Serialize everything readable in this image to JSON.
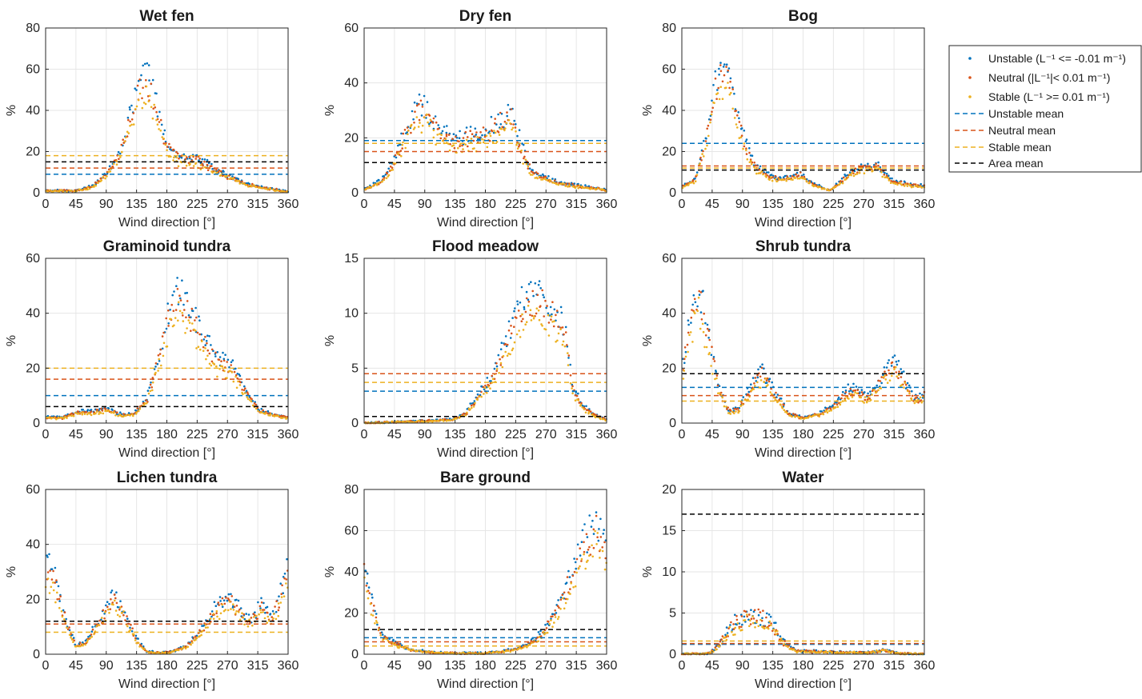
{
  "legend": {
    "entries": [
      {
        "key": "unstable",
        "label": "Unstable (L⁻¹ <= -0.01 m⁻¹)",
        "color": "#0072BD",
        "style": "dots"
      },
      {
        "key": "neutral",
        "label": "Neutral (|L⁻¹|< 0.01 m⁻¹)",
        "color": "#D95319",
        "style": "dots"
      },
      {
        "key": "stable",
        "label": "Stable (L⁻¹ >= 0.01 m⁻¹)",
        "color": "#EDB120",
        "style": "dots"
      },
      {
        "key": "unstable_mean",
        "label": "Unstable mean",
        "color": "#0072BD",
        "style": "dashed"
      },
      {
        "key": "neutral_mean",
        "label": "Neutral mean",
        "color": "#D95319",
        "style": "dashed"
      },
      {
        "key": "stable_mean",
        "label": "Stable mean",
        "color": "#EDB120",
        "style": "dashed"
      },
      {
        "key": "area_mean",
        "label": "Area mean",
        "color": "#000000",
        "style": "dashed"
      }
    ]
  },
  "chart_data": [
    {
      "type": "scatter",
      "title": "Wet fen",
      "xlabel": "Wind direction [°]",
      "ylabel": "%",
      "xlim": [
        0,
        360
      ],
      "ylim": [
        0,
        80
      ],
      "xticks": [
        0,
        45,
        90,
        135,
        180,
        225,
        270,
        315,
        360
      ],
      "yticks": [
        0,
        20,
        40,
        60,
        80
      ],
      "means": {
        "unstable": 9,
        "neutral": 12,
        "stable": 18,
        "area": 15
      },
      "profile": {
        "x": [
          0,
          45,
          70,
          90,
          110,
          125,
          135,
          150,
          165,
          180,
          200,
          225,
          245,
          270,
          300,
          330,
          360
        ],
        "y": [
          1,
          1,
          3,
          9,
          18,
          35,
          47,
          55,
          40,
          22,
          16,
          16,
          12,
          8,
          4,
          2,
          0.5
        ]
      },
      "spread": 0.12
    },
    {
      "type": "scatter",
      "title": "Dry fen",
      "xlabel": "Wind direction [°]",
      "ylabel": "%",
      "xlim": [
        0,
        360
      ],
      "ylim": [
        0,
        60
      ],
      "xticks": [
        0,
        45,
        90,
        135,
        180,
        225,
        270,
        315,
        360
      ],
      "yticks": [
        0,
        20,
        40,
        60
      ],
      "means": {
        "unstable": 19,
        "neutral": 15,
        "stable": 18,
        "area": 11
      },
      "profile": {
        "x": [
          0,
          30,
          45,
          60,
          75,
          90,
          110,
          135,
          160,
          180,
          200,
          220,
          235,
          250,
          270,
          300,
          330,
          360
        ],
        "y": [
          1,
          5,
          12,
          20,
          28,
          30,
          22,
          18,
          20,
          21,
          25,
          27,
          15,
          7,
          5,
          3,
          2,
          1
        ]
      },
      "spread": 0.15
    },
    {
      "type": "scatter",
      "title": "Bog",
      "xlabel": "Wind direction [°]",
      "ylabel": "%",
      "xlim": [
        0,
        360
      ],
      "ylim": [
        0,
        80
      ],
      "xticks": [
        0,
        45,
        90,
        135,
        180,
        225,
        270,
        315,
        360
      ],
      "yticks": [
        0,
        20,
        40,
        60,
        80
      ],
      "means": {
        "unstable": 24,
        "neutral": 13,
        "stable": 12,
        "area": 11
      },
      "profile": {
        "x": [
          0,
          20,
          35,
          50,
          60,
          70,
          80,
          95,
          110,
          135,
          160,
          175,
          195,
          220,
          245,
          265,
          290,
          310,
          335,
          360
        ],
        "y": [
          3,
          6,
          25,
          50,
          58,
          55,
          40,
          22,
          12,
          7,
          7,
          9,
          4,
          1,
          8,
          12,
          13,
          6,
          4,
          3
        ]
      },
      "spread": 0.12
    },
    {
      "type": "scatter",
      "title": "Graminoid tundra",
      "xlabel": "Wind direction [°]",
      "ylabel": "%",
      "xlim": [
        0,
        360
      ],
      "ylim": [
        0,
        60
      ],
      "xticks": [
        0,
        45,
        90,
        135,
        180,
        225,
        270,
        315,
        360
      ],
      "yticks": [
        0,
        20,
        40,
        60
      ],
      "means": {
        "unstable": 10,
        "neutral": 16,
        "stable": 20,
        "area": 6
      },
      "profile": {
        "x": [
          0,
          25,
          50,
          70,
          90,
          110,
          130,
          150,
          170,
          185,
          200,
          215,
          235,
          255,
          275,
          295,
          315,
          335,
          360
        ],
        "y": [
          2,
          2,
          4,
          4,
          5,
          3,
          3,
          8,
          25,
          40,
          46,
          38,
          30,
          22,
          20,
          12,
          5,
          3,
          2
        ]
      },
      "spread": 0.12
    },
    {
      "type": "scatter",
      "title": "Flood meadow",
      "xlabel": "Wind direction [°]",
      "ylabel": "%",
      "xlim": [
        0,
        360
      ],
      "ylim": [
        0,
        15
      ],
      "xticks": [
        0,
        45,
        90,
        135,
        180,
        225,
        270,
        315,
        360
      ],
      "yticks": [
        0,
        5,
        10,
        15
      ],
      "means": {
        "unstable": 2.9,
        "neutral": 4.5,
        "stable": 3.7,
        "area": 0.6
      },
      "profile": {
        "x": [
          0,
          45,
          90,
          130,
          150,
          170,
          190,
          210,
          230,
          245,
          260,
          280,
          300,
          310,
          325,
          340,
          360
        ],
        "y": [
          0,
          0.1,
          0.2,
          0.3,
          0.8,
          2.5,
          4,
          7,
          10,
          11,
          11,
          10,
          8,
          3,
          1.5,
          0.8,
          0.3
        ]
      },
      "spread": 0.12
    },
    {
      "type": "scatter",
      "title": "Shrub tundra",
      "xlabel": "Wind direction [°]",
      "ylabel": "%",
      "xlim": [
        0,
        360
      ],
      "ylim": [
        0,
        60
      ],
      "xticks": [
        0,
        45,
        90,
        135,
        180,
        225,
        270,
        315,
        360
      ],
      "yticks": [
        0,
        20,
        40,
        60
      ],
      "means": {
        "unstable": 13,
        "neutral": 10,
        "stable": 8,
        "area": 18
      },
      "profile": {
        "x": [
          0,
          10,
          25,
          40,
          55,
          70,
          85,
          100,
          120,
          140,
          160,
          180,
          200,
          225,
          250,
          275,
          295,
          315,
          330,
          345,
          360
        ],
        "y": [
          15,
          35,
          46,
          30,
          12,
          4,
          5,
          12,
          18,
          10,
          3,
          2,
          3,
          6,
          12,
          9,
          15,
          22,
          15,
          8,
          10
        ]
      },
      "spread": 0.15
    },
    {
      "type": "scatter",
      "title": "Lichen tundra",
      "xlabel": "Wind direction [°]",
      "ylabel": "%",
      "xlim": [
        0,
        360
      ],
      "ylim": [
        0,
        60
      ],
      "xticks": [
        0,
        45,
        90,
        135,
        180,
        225,
        270,
        315,
        360
      ],
      "yticks": [
        0,
        20,
        40,
        60
      ],
      "means": {
        "unstable": 12,
        "neutral": 11,
        "stable": 8,
        "area": 12
      },
      "profile": {
        "x": [
          0,
          15,
          30,
          45,
          60,
          80,
          100,
          115,
          135,
          150,
          170,
          190,
          210,
          230,
          250,
          270,
          290,
          305,
          320,
          335,
          350,
          360
        ],
        "y": [
          32,
          25,
          12,
          3,
          4,
          12,
          20,
          16,
          5,
          1,
          0.5,
          1,
          3,
          8,
          15,
          20,
          15,
          12,
          17,
          12,
          22,
          30
        ]
      },
      "spread": 0.15
    },
    {
      "type": "scatter",
      "title": "Bare ground",
      "xlabel": "Wind direction [°]",
      "ylabel": "%",
      "xlim": [
        0,
        360
      ],
      "ylim": [
        0,
        80
      ],
      "xticks": [
        0,
        45,
        90,
        135,
        180,
        225,
        270,
        315,
        360
      ],
      "yticks": [
        0,
        20,
        40,
        60,
        80
      ],
      "means": {
        "unstable": 8,
        "neutral": 6,
        "stable": 4,
        "area": 12
      },
      "profile": {
        "x": [
          0,
          10,
          25,
          45,
          70,
          100,
          135,
          180,
          220,
          245,
          265,
          285,
          305,
          325,
          345,
          360
        ],
        "y": [
          40,
          25,
          10,
          5,
          2,
          1,
          0.5,
          0.5,
          2,
          5,
          10,
          20,
          35,
          50,
          62,
          48
        ]
      },
      "spread": 0.15
    },
    {
      "type": "scatter",
      "title": "Water",
      "xlabel": "Wind direction [°]",
      "ylabel": "%",
      "xlim": [
        0,
        360
      ],
      "ylim": [
        0,
        20
      ],
      "xticks": [
        0,
        45,
        90,
        135,
        180,
        225,
        270,
        315,
        360
      ],
      "yticks": [
        0,
        5,
        10,
        15,
        20
      ],
      "means": {
        "unstable": 1.2,
        "neutral": 1.3,
        "stable": 1.6,
        "area": 17
      },
      "profile": {
        "x": [
          0,
          40,
          55,
          70,
          90,
          110,
          130,
          150,
          170,
          200,
          250,
          280,
          300,
          320,
          360
        ],
        "y": [
          0,
          0.1,
          1,
          3,
          4.2,
          4.5,
          4,
          1.5,
          0.4,
          0.3,
          0.2,
          0.2,
          0.5,
          0.1,
          0
        ]
      },
      "spread": 0.25
    }
  ]
}
